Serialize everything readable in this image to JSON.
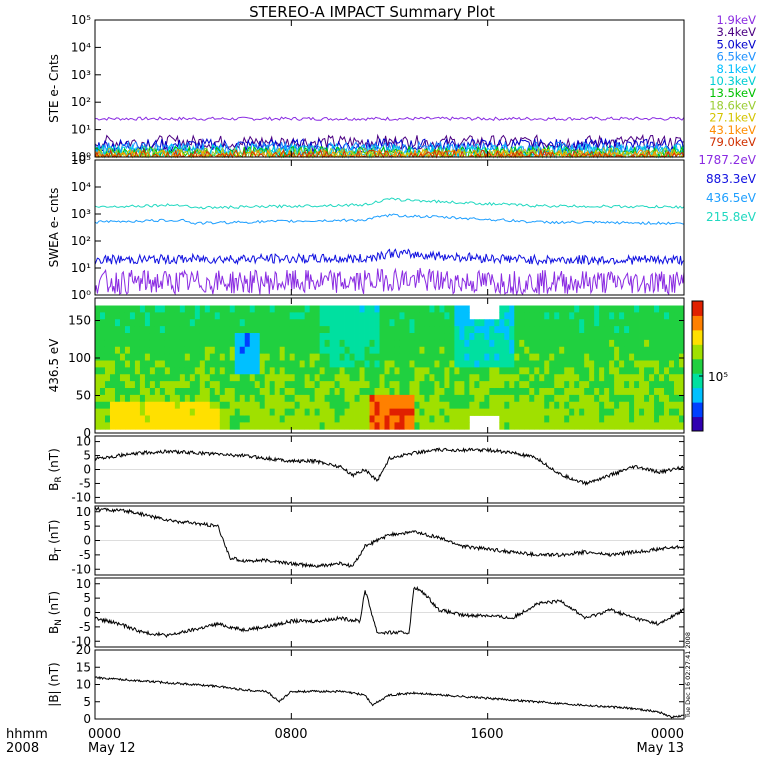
{
  "title": "STEREO-A IMPACT Summary Plot",
  "footer": {
    "hhmm_label": "hhmm",
    "year_label": "2008",
    "ticks": [
      "0000",
      "0800",
      "1600",
      "0000"
    ],
    "dates": [
      "May 12",
      "",
      "",
      "May 13"
    ],
    "timestamp": "Tue Dec 16 02:27:41 2008"
  },
  "chart_data": [
    {
      "id": "ste",
      "type": "line",
      "ylabel": "STE e- Cnts",
      "yscale": "log",
      "ylim": [
        1,
        100000
      ],
      "yticks": [
        1,
        10,
        100,
        1000,
        10000,
        100000
      ],
      "yticklabels": [
        "10⁰",
        "10¹",
        "10²",
        "10³",
        "10⁴",
        "10⁵"
      ],
      "xlim": [
        0,
        24
      ],
      "series": [
        {
          "name": "1.9keV",
          "color": "#8a2be2",
          "level": 25
        },
        {
          "name": "3.4keV",
          "color": "#4b0082",
          "level": 3.5
        },
        {
          "name": "5.0keV",
          "color": "#0000cd",
          "level": 2.6
        },
        {
          "name": "6.5keV",
          "color": "#1e90ff",
          "level": 2.0
        },
        {
          "name": "8.1keV",
          "color": "#00bfff",
          "level": 1.7
        },
        {
          "name": "10.3keV",
          "color": "#00ced1",
          "level": 1.5
        },
        {
          "name": "13.5keV",
          "color": "#00c000",
          "level": 1.35
        },
        {
          "name": "18.6keV",
          "color": "#9acd32",
          "level": 1.2
        },
        {
          "name": "27.1keV",
          "color": "#d4c400",
          "level": 1.1
        },
        {
          "name": "43.1keV",
          "color": "#ff8c00",
          "level": 1.05
        },
        {
          "name": "79.0keV",
          "color": "#d03000",
          "level": 1.0
        }
      ]
    },
    {
      "id": "swea",
      "type": "line",
      "ylabel": "SWEA e- cnts",
      "yscale": "log",
      "ylim": [
        1,
        100000
      ],
      "yticks": [
        1,
        10,
        100,
        1000,
        10000,
        100000
      ],
      "yticklabels": [
        "10⁰",
        "10¹",
        "10²",
        "10³",
        "10⁴",
        "10⁵"
      ],
      "xlim": [
        0,
        24
      ],
      "series": [
        {
          "name": "1787.2eV",
          "color": "#8a2be2",
          "x": [
            0,
            6,
            11,
            12,
            15,
            18,
            24
          ],
          "y": [
            3,
            3,
            3,
            4,
            3,
            3,
            3
          ]
        },
        {
          "name": "883.3eV",
          "color": "#1010e0",
          "x": [
            0,
            6,
            11,
            12,
            15,
            18,
            24
          ],
          "y": [
            20,
            22,
            22,
            35,
            25,
            20,
            20
          ]
        },
        {
          "name": "436.5eV",
          "color": "#1e9fff",
          "x": [
            0,
            3.6,
            4,
            6,
            11,
            12,
            15,
            18,
            24
          ],
          "y": [
            500,
            600,
            450,
            500,
            600,
            900,
            700,
            500,
            450
          ]
        },
        {
          "name": "215.8eV",
          "color": "#20d8c0",
          "x": [
            0,
            3.6,
            4,
            6,
            11,
            12,
            15,
            18,
            24
          ],
          "y": [
            1800,
            2200,
            1700,
            1800,
            2200,
            3500,
            2600,
            2000,
            1800
          ]
        }
      ]
    },
    {
      "id": "pad",
      "type": "heatmap",
      "ylabel": "436.5 eV",
      "ylim": [
        0,
        180
      ],
      "yticks": [
        0,
        50,
        100,
        150
      ],
      "xlim": [
        0,
        24
      ],
      "colorbar_tick": "10⁵",
      "colormap": [
        "#3000b0",
        "#0040ff",
        "#00c0ff",
        "#00e0a0",
        "#20d040",
        "#a0e000",
        "#ffe000",
        "#ff8000",
        "#e02000"
      ]
    },
    {
      "id": "br",
      "type": "line",
      "ylabel": "B_R (nT)",
      "ylim": [
        -12,
        12
      ],
      "yticks": [
        -10,
        -5,
        0,
        5,
        10
      ],
      "xlim": [
        0,
        24
      ],
      "x": [
        0,
        1,
        2,
        3,
        4,
        5,
        6,
        7,
        8,
        9,
        9.5,
        10,
        10.5,
        11,
        11.5,
        12,
        12.5,
        13,
        14,
        15,
        16,
        17,
        18,
        19,
        20,
        21,
        22,
        23,
        24
      ],
      "y": [
        4,
        5,
        6,
        6.5,
        6,
        5.5,
        5,
        4,
        3,
        3,
        2,
        1,
        -2,
        0,
        -4,
        4,
        5,
        6,
        7,
        7,
        7,
        6,
        4,
        -2,
        -5,
        -2,
        1,
        -1,
        1
      ]
    },
    {
      "id": "bt",
      "type": "line",
      "ylabel": "B_T (nT)",
      "ylim": [
        -12,
        12
      ],
      "yticks": [
        -10,
        -5,
        0,
        5,
        10
      ],
      "xlim": [
        0,
        24
      ],
      "x": [
        0,
        1.5,
        2,
        3,
        4,
        5,
        5.5,
        6,
        7,
        8,
        9,
        10,
        10.5,
        11,
        12,
        13,
        14,
        15,
        16,
        17,
        18,
        19,
        20,
        21,
        22,
        23,
        24
      ],
      "y": [
        11,
        10,
        9,
        7,
        6,
        5,
        -6,
        -7,
        -7,
        -8,
        -9,
        -8,
        -9,
        -2,
        2,
        3,
        1,
        -2,
        -3,
        -4,
        -5,
        -5,
        -4,
        -5,
        -4,
        -3,
        -2
      ]
    },
    {
      "id": "bn",
      "type": "line",
      "ylabel": "B_N (nT)",
      "ylim": [
        -12,
        12
      ],
      "yticks": [
        -10,
        -5,
        0,
        5,
        10
      ],
      "xlim": [
        0,
        24
      ],
      "x": [
        0,
        1,
        2,
        3,
        4,
        5,
        6,
        7,
        8,
        9,
        10,
        10.8,
        11,
        11.5,
        12,
        12.8,
        13,
        13.5,
        14,
        15,
        16,
        17,
        18,
        19,
        20,
        21,
        22,
        23,
        24
      ],
      "y": [
        -2,
        -4,
        -7,
        -8,
        -6,
        -4,
        -6,
        -5,
        -3,
        -3,
        -2,
        -3,
        8,
        -7,
        -7,
        -7,
        9,
        6,
        1,
        -1,
        -1,
        -2,
        3,
        4,
        -2,
        1,
        -2,
        -4,
        1
      ]
    },
    {
      "id": "bmag",
      "type": "line",
      "ylabel": "|B| (nT)",
      "ylim": [
        0,
        20
      ],
      "yticks": [
        0,
        5,
        10,
        15,
        20
      ],
      "xlim": [
        0,
        24
      ],
      "x": [
        0,
        1,
        2,
        3,
        4,
        5,
        6,
        7,
        7.5,
        8,
        9,
        10,
        11,
        11.3,
        12,
        13,
        14,
        15,
        16,
        17,
        18,
        19,
        20,
        21,
        22,
        23,
        23.5,
        24
      ],
      "y": [
        12,
        11.5,
        11,
        10.5,
        10,
        9.5,
        8.5,
        8,
        5,
        8,
        8,
        8,
        7,
        4,
        7,
        7.5,
        7,
        6.5,
        6,
        5.5,
        5,
        4.5,
        4,
        3.5,
        3,
        2,
        0.5,
        1
      ]
    }
  ]
}
